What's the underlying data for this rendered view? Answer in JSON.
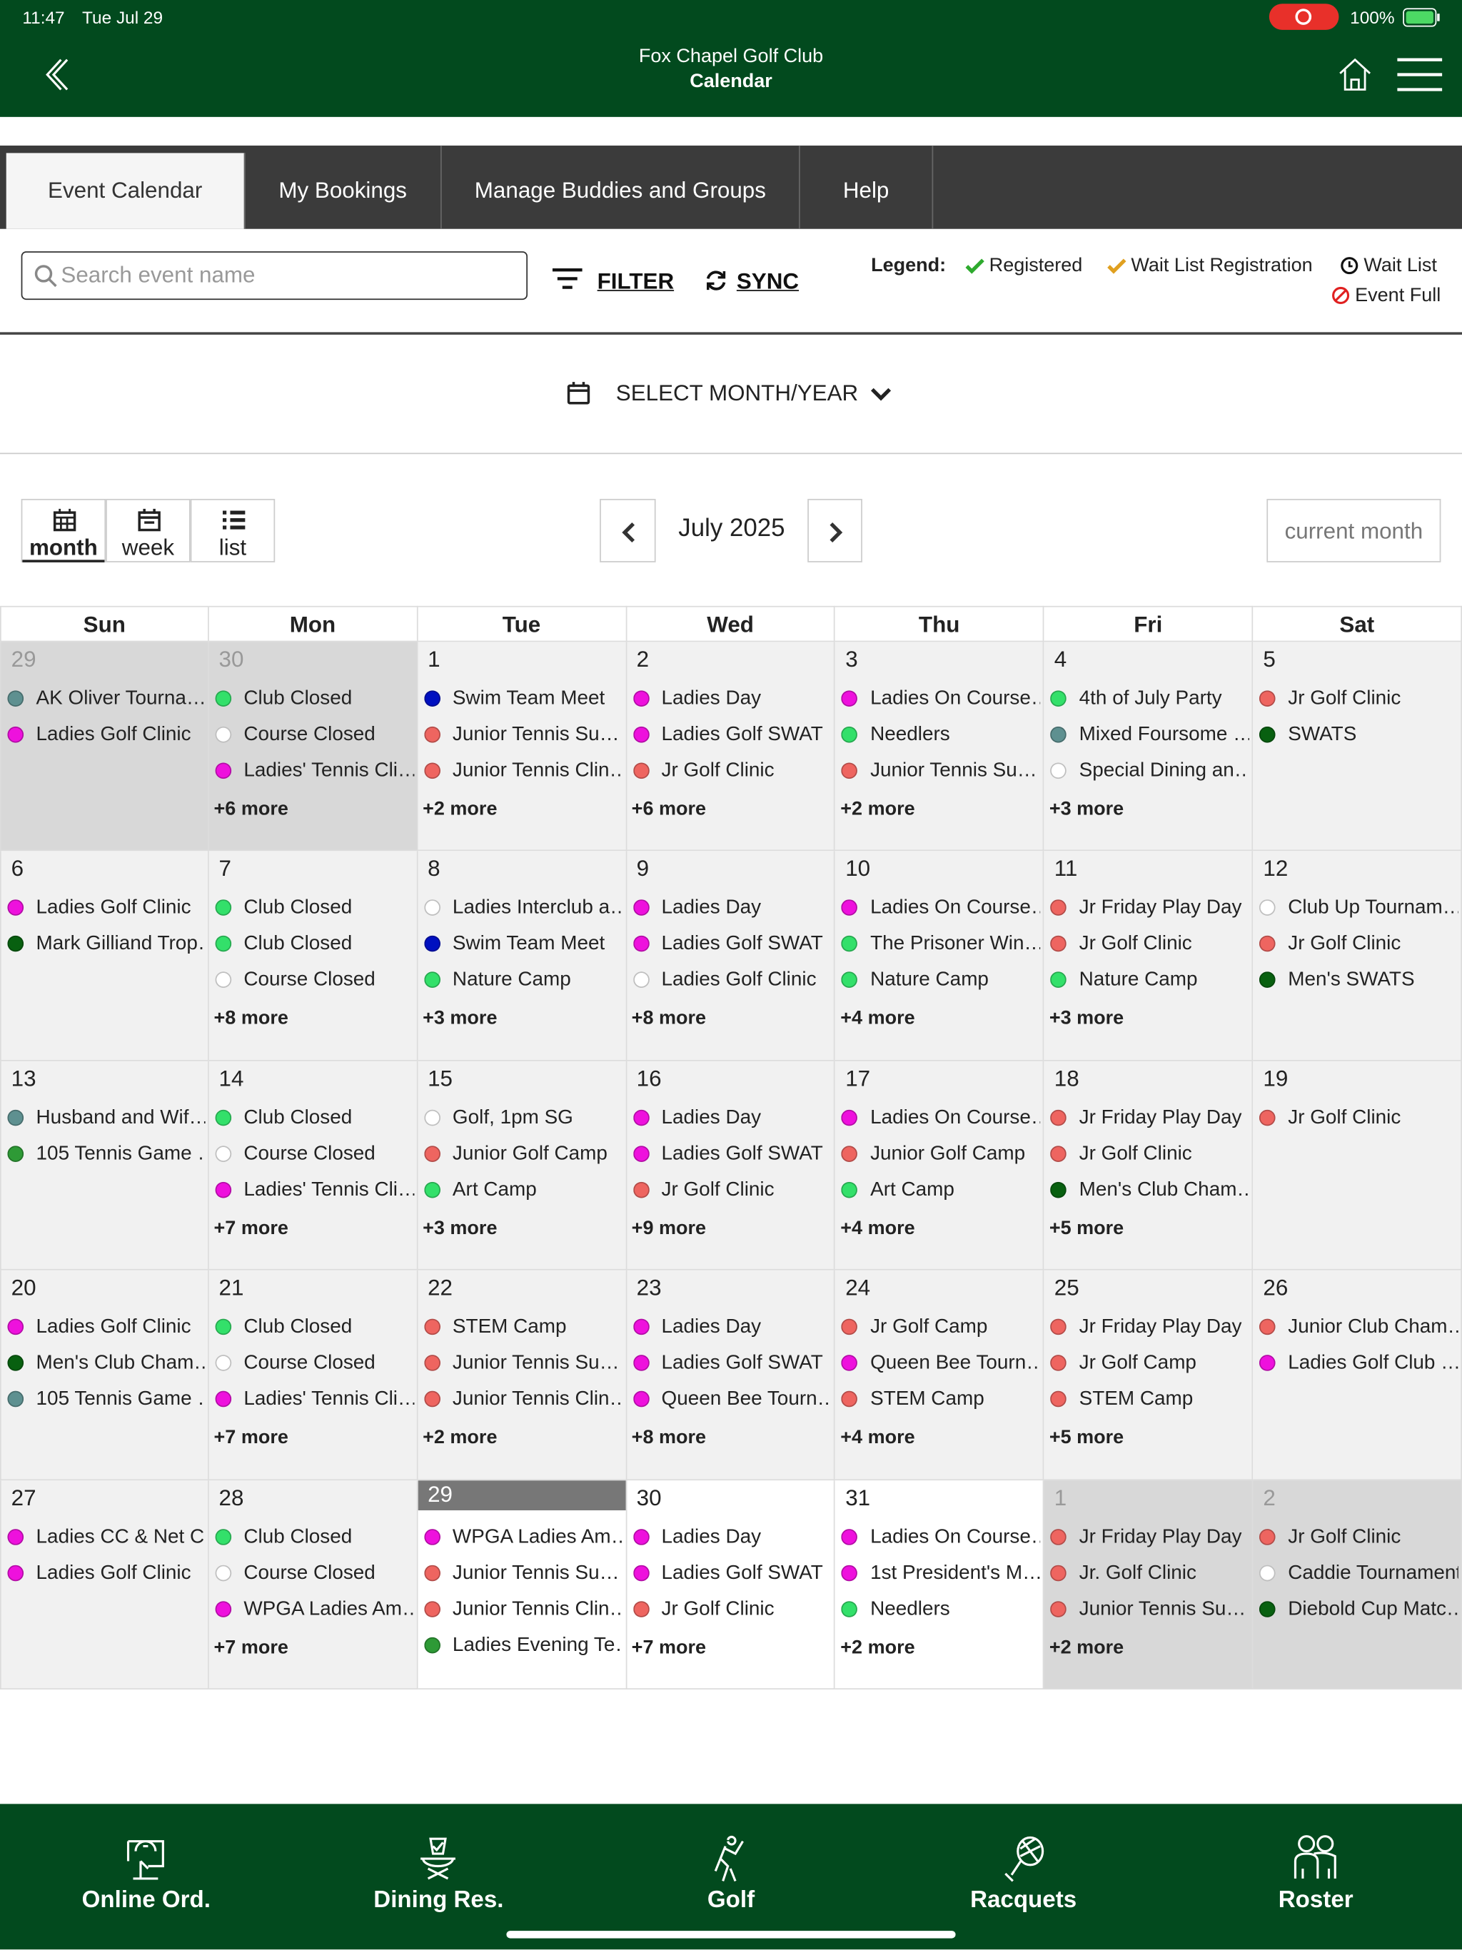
{
  "status_bar": {
    "time": "11:47",
    "date": "Tue Jul 29",
    "battery": "100%"
  },
  "header": {
    "club": "Fox Chapel Golf Club",
    "title": "Calendar"
  },
  "tabs": [
    "Event Calendar",
    "My Bookings",
    "Manage Buddies and Groups",
    "Help"
  ],
  "toolbar": {
    "search_placeholder": "Search event name",
    "filter": "FILTER",
    "sync": "SYNC"
  },
  "legend": {
    "title": "Legend:",
    "items": [
      "Registered",
      "Wait List Registration",
      "Wait List",
      "Event Full"
    ]
  },
  "month_picker": "SELECT MONTH/YEAR",
  "views": [
    "month",
    "week",
    "list"
  ],
  "calendar": {
    "title": "July 2025",
    "current_button": "current month",
    "weekdays": [
      "Sun",
      "Mon",
      "Tue",
      "Wed",
      "Thu",
      "Fri",
      "Sat"
    ],
    "weeks": [
      [
        {
          "day": 29,
          "other_month": true,
          "events": [
            {
              "name": "AK Oliver Tourna…",
              "color": "#5e9090"
            },
            {
              "name": "Ladies Golf Clinic",
              "color": "#ee11dd"
            }
          ]
        },
        {
          "day": 30,
          "other_month": true,
          "events": [
            {
              "name": "Club Closed",
              "color": "#33e06a"
            },
            {
              "name": "Course Closed",
              "color": "#ffffff"
            },
            {
              "name": "Ladies' Tennis Cli…",
              "color": "#ee11dd"
            }
          ],
          "more": "+6 more"
        },
        {
          "day": 1,
          "events": [
            {
              "name": "Swim Team Meet",
              "color": "#0010c0"
            },
            {
              "name": "Junior Tennis Su…",
              "color": "#ee6560"
            },
            {
              "name": "Junior Tennis Clin…",
              "color": "#ee6560"
            }
          ],
          "more": "+2 more"
        },
        {
          "day": 2,
          "events": [
            {
              "name": "Ladies Day",
              "color": "#ee11dd"
            },
            {
              "name": "Ladies Golf SWAT",
              "color": "#ee11dd"
            },
            {
              "name": "Jr Golf Clinic",
              "color": "#ee6560"
            }
          ],
          "more": "+6 more"
        },
        {
          "day": 3,
          "events": [
            {
              "name": "Ladies On Course…",
              "color": "#ee11dd"
            },
            {
              "name": "Needlers",
              "color": "#33e06a"
            },
            {
              "name": "Junior Tennis Su…",
              "color": "#ee6560"
            }
          ],
          "more": "+2 more"
        },
        {
          "day": 4,
          "events": [
            {
              "name": "4th of July Party",
              "color": "#33e06a"
            },
            {
              "name": "Mixed Foursome …",
              "color": "#5e9090"
            },
            {
              "name": "Special Dining an…",
              "color": "#ffffff"
            }
          ],
          "more": "+3 more"
        },
        {
          "day": 5,
          "events": [
            {
              "name": "Jr Golf Clinic",
              "color": "#ee6560"
            },
            {
              "name": "SWATS",
              "color": "#086010"
            }
          ]
        }
      ],
      [
        {
          "day": 6,
          "events": [
            {
              "name": "Ladies Golf Clinic",
              "color": "#ee11dd"
            },
            {
              "name": "Mark Gilliand Trop…",
              "color": "#086010"
            }
          ]
        },
        {
          "day": 7,
          "events": [
            {
              "name": "Club Closed",
              "color": "#33e06a"
            },
            {
              "name": "Club Closed",
              "color": "#33e06a"
            },
            {
              "name": "Course Closed",
              "color": "#ffffff"
            }
          ],
          "more": "+8 more"
        },
        {
          "day": 8,
          "events": [
            {
              "name": "Ladies Interclub a…",
              "color": "#ffffff"
            },
            {
              "name": "Swim Team Meet",
              "color": "#0010c0"
            },
            {
              "name": "Nature Camp",
              "color": "#33e06a"
            }
          ],
          "more": "+3 more"
        },
        {
          "day": 9,
          "events": [
            {
              "name": "Ladies Day",
              "color": "#ee11dd"
            },
            {
              "name": "Ladies Golf SWAT",
              "color": "#ee11dd"
            },
            {
              "name": "Ladies Golf Clinic",
              "color": "#ffffff"
            }
          ],
          "more": "+8 more"
        },
        {
          "day": 10,
          "events": [
            {
              "name": "Ladies On Course…",
              "color": "#ee11dd"
            },
            {
              "name": "The Prisoner Win…",
              "color": "#33e06a"
            },
            {
              "name": "Nature Camp",
              "color": "#33e06a"
            }
          ],
          "more": "+4 more"
        },
        {
          "day": 11,
          "events": [
            {
              "name": "Jr Friday Play Day",
              "color": "#ee6560"
            },
            {
              "name": "Jr Golf Clinic",
              "color": "#ee6560"
            },
            {
              "name": "Nature Camp",
              "color": "#33e06a"
            }
          ],
          "more": "+3 more"
        },
        {
          "day": 12,
          "events": [
            {
              "name": "Club Up Tournam…",
              "color": "#ffffff"
            },
            {
              "name": "Jr Golf Clinic",
              "color": "#ee6560"
            },
            {
              "name": "Men's SWATS",
              "color": "#086010"
            }
          ]
        }
      ],
      [
        {
          "day": 13,
          "events": [
            {
              "name": "Husband and Wif…",
              "color": "#5e9090"
            },
            {
              "name": "105 Tennis Game …",
              "color": "#2e9a36"
            }
          ]
        },
        {
          "day": 14,
          "events": [
            {
              "name": "Club Closed",
              "color": "#33e06a"
            },
            {
              "name": "Course Closed",
              "color": "#ffffff"
            },
            {
              "name": "Ladies' Tennis Cli…",
              "color": "#ee11dd"
            }
          ],
          "more": "+7 more"
        },
        {
          "day": 15,
          "events": [
            {
              "name": "Golf, 1pm SG",
              "color": "#ffffff"
            },
            {
              "name": "Junior Golf Camp",
              "color": "#ee6560"
            },
            {
              "name": "Art Camp",
              "color": "#33e06a"
            }
          ],
          "more": "+3 more"
        },
        {
          "day": 16,
          "events": [
            {
              "name": "Ladies Day",
              "color": "#ee11dd"
            },
            {
              "name": "Ladies Golf SWAT",
              "color": "#ee11dd"
            },
            {
              "name": "Jr Golf Clinic",
              "color": "#ee6560"
            }
          ],
          "more": "+9 more"
        },
        {
          "day": 17,
          "events": [
            {
              "name": "Ladies On Course…",
              "color": "#ee11dd"
            },
            {
              "name": "Junior Golf Camp",
              "color": "#ee6560"
            },
            {
              "name": "Art Camp",
              "color": "#33e06a"
            }
          ],
          "more": "+4 more"
        },
        {
          "day": 18,
          "events": [
            {
              "name": "Jr Friday Play Day",
              "color": "#ee6560"
            },
            {
              "name": "Jr Golf Clinic",
              "color": "#ee6560"
            },
            {
              "name": "Men's Club Cham…",
              "color": "#086010"
            }
          ],
          "more": "+5 more"
        },
        {
          "day": 19,
          "events": [
            {
              "name": "Jr Golf Clinic",
              "color": "#ee6560"
            }
          ]
        }
      ],
      [
        {
          "day": 20,
          "events": [
            {
              "name": "Ladies Golf Clinic",
              "color": "#ee11dd"
            },
            {
              "name": "Men's Club Cham…",
              "color": "#086010"
            },
            {
              "name": "105 Tennis Game …",
              "color": "#5e9090"
            }
          ]
        },
        {
          "day": 21,
          "events": [
            {
              "name": "Club Closed",
              "color": "#33e06a"
            },
            {
              "name": "Course Closed",
              "color": "#ffffff"
            },
            {
              "name": "Ladies' Tennis Cli…",
              "color": "#ee11dd"
            }
          ],
          "more": "+7 more"
        },
        {
          "day": 22,
          "events": [
            {
              "name": "STEM Camp",
              "color": "#ee6560"
            },
            {
              "name": "Junior Tennis Su…",
              "color": "#ee6560"
            },
            {
              "name": "Junior Tennis Clin…",
              "color": "#ee6560"
            }
          ],
          "more": "+2 more"
        },
        {
          "day": 23,
          "events": [
            {
              "name": "Ladies Day",
              "color": "#ee11dd"
            },
            {
              "name": "Ladies Golf SWAT",
              "color": "#ee11dd"
            },
            {
              "name": "Queen Bee Tourn…",
              "color": "#ee11dd"
            }
          ],
          "more": "+8 more"
        },
        {
          "day": 24,
          "events": [
            {
              "name": "Jr Golf Camp",
              "color": "#ee6560"
            },
            {
              "name": "Queen Bee Tourn…",
              "color": "#ee11dd"
            },
            {
              "name": "STEM Camp",
              "color": "#ee6560"
            }
          ],
          "more": "+4 more"
        },
        {
          "day": 25,
          "events": [
            {
              "name": "Jr Friday Play Day",
              "color": "#ee6560"
            },
            {
              "name": "Jr Golf Camp",
              "color": "#ee6560"
            },
            {
              "name": "STEM Camp",
              "color": "#ee6560"
            }
          ],
          "more": "+5 more"
        },
        {
          "day": 26,
          "events": [
            {
              "name": "Junior Club Cham…",
              "color": "#ee6560"
            },
            {
              "name": "Ladies Golf Club …",
              "color": "#ee11dd"
            }
          ]
        }
      ],
      [
        {
          "day": 27,
          "events": [
            {
              "name": "Ladies CC & Net C…",
              "color": "#ee11dd"
            },
            {
              "name": "Ladies Golf Clinic",
              "color": "#ee11dd"
            }
          ]
        },
        {
          "day": 28,
          "events": [
            {
              "name": "Club Closed",
              "color": "#33e06a"
            },
            {
              "name": "Course Closed",
              "color": "#ffffff"
            },
            {
              "name": "WPGA Ladies Am…",
              "color": "#ee11dd"
            }
          ],
          "more": "+7 more"
        },
        {
          "day": 29,
          "today": true,
          "events": [
            {
              "name": "WPGA Ladies Am…",
              "color": "#ee11dd"
            },
            {
              "name": "Junior Tennis Su…",
              "color": "#ee6560"
            },
            {
              "name": "Junior Tennis Clin…",
              "color": "#ee6560"
            },
            {
              "name": "Ladies Evening Te…",
              "color": "#2e9a36"
            }
          ]
        },
        {
          "day": 30,
          "events": [
            {
              "name": "Ladies Day",
              "color": "#ee11dd"
            },
            {
              "name": "Ladies Golf SWAT",
              "color": "#ee11dd"
            },
            {
              "name": "Jr Golf Clinic",
              "color": "#ee6560"
            }
          ],
          "more": "+7 more"
        },
        {
          "day": 31,
          "events": [
            {
              "name": "Ladies On Course…",
              "color": "#ee11dd"
            },
            {
              "name": "1st President's M…",
              "color": "#ee11dd"
            },
            {
              "name": "Needlers",
              "color": "#33e06a"
            }
          ],
          "more": "+2 more"
        },
        {
          "day": 1,
          "other_month": true,
          "events": [
            {
              "name": "Jr Friday Play Day",
              "color": "#ee6560"
            },
            {
              "name": "Jr. Golf Clinic",
              "color": "#ee6560"
            },
            {
              "name": "Junior Tennis Su…",
              "color": "#ee6560"
            }
          ],
          "more": "+2 more"
        },
        {
          "day": 2,
          "other_month": true,
          "events": [
            {
              "name": "Jr Golf Clinic",
              "color": "#ee6560"
            },
            {
              "name": "Caddie Tournament",
              "color": "#ffffff"
            },
            {
              "name": "Diebold Cup Matc…",
              "color": "#086010"
            }
          ]
        }
      ]
    ]
  },
  "bottom_nav": [
    "Online Ord.",
    "Dining Res.",
    "Golf",
    "Racquets",
    "Roster"
  ]
}
